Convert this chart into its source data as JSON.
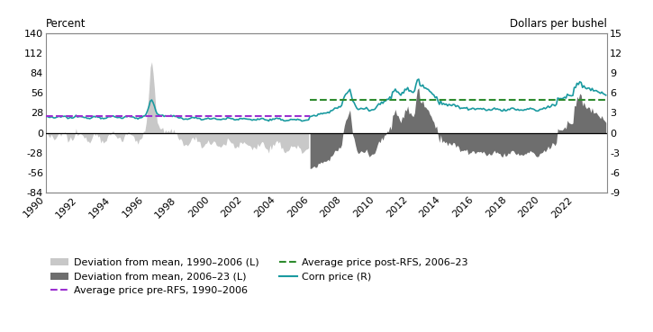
{
  "ylabel_left": "Percent",
  "ylabel_right": "Dollars per bushel",
  "ylim_left": [
    -84,
    140
  ],
  "ylim_right": [
    -9,
    15
  ],
  "yticks_left": [
    -84,
    -56,
    -28,
    0,
    28,
    56,
    84,
    112,
    140
  ],
  "yticks_right": [
    -9,
    -6,
    -3,
    0,
    3,
    6,
    9,
    12,
    15
  ],
  "xticks": [
    1990,
    1992,
    1994,
    1996,
    1998,
    2000,
    2002,
    2004,
    2006,
    2008,
    2010,
    2012,
    2014,
    2016,
    2018,
    2020,
    2022
  ],
  "xlim": [
    1990,
    2024
  ],
  "split_year": 2006,
  "end_year": 2024,
  "color_light_gray": "#c8c8c8",
  "color_dark_gray": "#6e6e6e",
  "color_purple": "#9b30d0",
  "color_green": "#2e8b2e",
  "color_teal": "#1a9aa0",
  "bg_color": "#ffffff",
  "pre_rfs_avg_price": 2.48,
  "post_rfs_avg_price": 4.95,
  "legend_items": [
    "Deviation from mean, 1990–2006 (L)",
    "Deviation from mean, 2006–23 (L)",
    "Average price pre-RFS, 1990–2006",
    "Average price post-RFS, 2006–23",
    "Corn price (R)"
  ]
}
